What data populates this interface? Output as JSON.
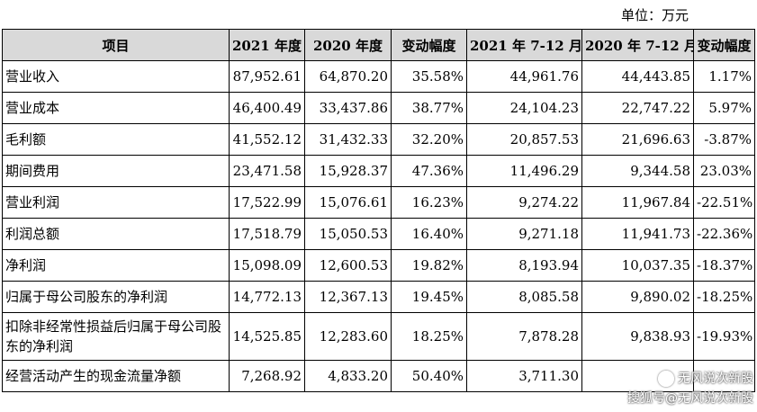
{
  "unit_label": "单位：万元",
  "table": {
    "headers": [
      "项目",
      "2021 年度",
      "2020 年度",
      "变动幅度",
      "2021 年 7-12 月",
      "2020 年 7-12 月",
      "变动幅度"
    ],
    "rows": [
      {
        "label": "营业收入",
        "values": [
          "87,952.61",
          "64,870.20",
          "35.58%",
          "44,961.76",
          "44,443.85",
          "1.17%"
        ]
      },
      {
        "label": "营业成本",
        "values": [
          "46,400.49",
          "33,437.86",
          "38.77%",
          "24,104.23",
          "22,747.22",
          "5.97%"
        ]
      },
      {
        "label": "毛利额",
        "values": [
          "41,552.12",
          "31,432.33",
          "32.20%",
          "20,857.53",
          "21,696.63",
          "-3.87%"
        ]
      },
      {
        "label": "期间费用",
        "values": [
          "23,471.58",
          "15,928.37",
          "47.36%",
          "11,496.29",
          "9,344.58",
          "23.03%"
        ]
      },
      {
        "label": "营业利润",
        "values": [
          "17,522.99",
          "15,076.61",
          "16.23%",
          "9,274.22",
          "11,967.84",
          "-22.51%"
        ]
      },
      {
        "label": "利润总额",
        "values": [
          "17,518.79",
          "15,050.53",
          "16.40%",
          "9,271.18",
          "11,941.73",
          "-22.36%"
        ]
      },
      {
        "label": "净利润",
        "values": [
          "15,098.09",
          "12,600.53",
          "19.82%",
          "8,193.94",
          "10,037.35",
          "-18.37%"
        ]
      },
      {
        "label": "归属于母公司股东的净利润",
        "values": [
          "14,772.13",
          "12,367.13",
          "19.45%",
          "8,085.58",
          "9,890.02",
          "-18.25%"
        ]
      },
      {
        "label": "扣除非经常性损益后归属于母公司股东的净利润",
        "values": [
          "14,525.85",
          "12,283.60",
          "18.25%",
          "7,878.28",
          "9,838.93",
          "-19.93%"
        ]
      },
      {
        "label": "经营活动产生的现金流量净额",
        "values": [
          "7,268.92",
          "4,833.20",
          "50.40%",
          "3,711.30",
          "",
          ""
        ]
      }
    ]
  },
  "watermark": {
    "line1": "无风说次新股",
    "line2": "搜狐号@无风说次新股"
  }
}
